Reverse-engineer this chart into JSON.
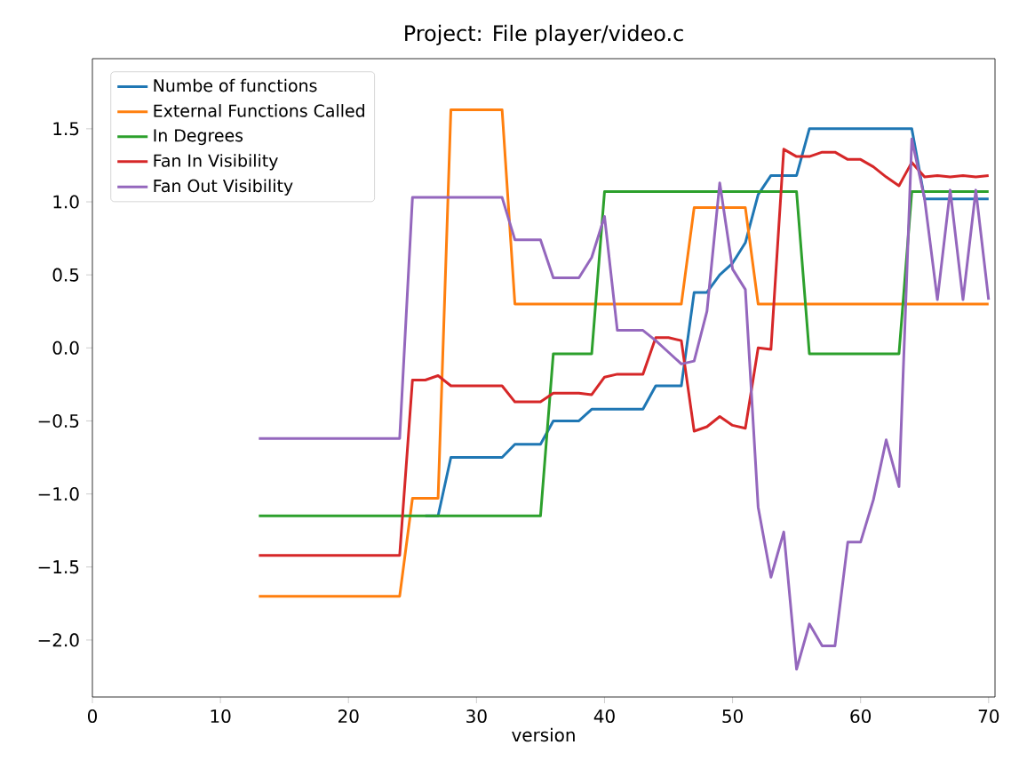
{
  "chart_data": {
    "type": "line",
    "title": "Project: File player/video.c",
    "xlabel": "version",
    "x": [
      13,
      14,
      15,
      16,
      17,
      18,
      19,
      20,
      21,
      22,
      23,
      24,
      25,
      26,
      27,
      28,
      29,
      30,
      31,
      32,
      33,
      34,
      35,
      36,
      37,
      38,
      39,
      40,
      41,
      42,
      43,
      44,
      45,
      46,
      47,
      48,
      49,
      50,
      51,
      52,
      53,
      54,
      55,
      56,
      57,
      58,
      59,
      60,
      61,
      62,
      63,
      64,
      65,
      66,
      67,
      68,
      69,
      70
    ],
    "series": [
      {
        "name": "Numbe of functions",
        "color": "#1f77b4",
        "values": [
          null,
          null,
          null,
          null,
          null,
          null,
          null,
          null,
          null,
          null,
          null,
          null,
          null,
          -1.15,
          -1.15,
          -0.75,
          -0.75,
          -0.75,
          -0.75,
          -0.75,
          -0.66,
          -0.66,
          -0.66,
          -0.5,
          -0.5,
          -0.5,
          -0.42,
          -0.42,
          -0.42,
          -0.42,
          -0.42,
          -0.26,
          -0.26,
          -0.26,
          0.38,
          0.38,
          0.5,
          0.58,
          0.72,
          1.05,
          1.18,
          1.18,
          1.18,
          1.5,
          1.5,
          1.5,
          1.5,
          1.5,
          1.5,
          1.5,
          1.5,
          1.5,
          1.02,
          1.02,
          1.02,
          1.02,
          1.02,
          1.02
        ]
      },
      {
        "name": "External Functions Called",
        "color": "#ff7f0e",
        "values": [
          -1.7,
          -1.7,
          -1.7,
          -1.7,
          -1.7,
          -1.7,
          -1.7,
          -1.7,
          -1.7,
          -1.7,
          -1.7,
          -1.7,
          -1.03,
          -1.03,
          -1.03,
          1.63,
          1.63,
          1.63,
          1.63,
          1.63,
          0.3,
          0.3,
          0.3,
          0.3,
          0.3,
          0.3,
          0.3,
          0.3,
          0.3,
          0.3,
          0.3,
          0.3,
          0.3,
          0.3,
          0.96,
          0.96,
          0.96,
          0.96,
          0.96,
          0.3,
          0.3,
          0.3,
          0.3,
          0.3,
          0.3,
          0.3,
          0.3,
          0.3,
          0.3,
          0.3,
          0.3,
          0.3,
          0.3,
          0.3,
          0.3,
          0.3,
          0.3,
          0.3
        ]
      },
      {
        "name": "In Degrees",
        "color": "#2ca02c",
        "values": [
          -1.15,
          -1.15,
          -1.15,
          -1.15,
          -1.15,
          -1.15,
          -1.15,
          -1.15,
          -1.15,
          -1.15,
          -1.15,
          -1.15,
          -1.15,
          -1.15,
          -1.15,
          -1.15,
          -1.15,
          -1.15,
          -1.15,
          -1.15,
          -1.15,
          -1.15,
          -1.15,
          -0.04,
          -0.04,
          -0.04,
          -0.04,
          1.07,
          1.07,
          1.07,
          1.07,
          1.07,
          1.07,
          1.07,
          1.07,
          1.07,
          1.07,
          1.07,
          1.07,
          1.07,
          1.07,
          1.07,
          1.07,
          -0.04,
          -0.04,
          -0.04,
          -0.04,
          -0.04,
          -0.04,
          -0.04,
          -0.04,
          1.07,
          1.07,
          1.07,
          1.07,
          1.07,
          1.07,
          1.07
        ]
      },
      {
        "name": "Fan In Visibility",
        "color": "#d62728",
        "values": [
          -1.42,
          -1.42,
          -1.42,
          -1.42,
          -1.42,
          -1.42,
          -1.42,
          -1.42,
          -1.42,
          -1.42,
          -1.42,
          -1.42,
          -0.22,
          -0.22,
          -0.19,
          -0.26,
          -0.26,
          -0.26,
          -0.26,
          -0.26,
          -0.37,
          -0.37,
          -0.37,
          -0.31,
          -0.31,
          -0.31,
          -0.32,
          -0.2,
          -0.18,
          -0.18,
          -0.18,
          0.07,
          0.07,
          0.05,
          -0.57,
          -0.54,
          -0.47,
          -0.53,
          -0.55,
          0.0,
          -0.01,
          1.36,
          1.31,
          1.31,
          1.34,
          1.34,
          1.29,
          1.29,
          1.24,
          1.17,
          1.11,
          1.27,
          1.17,
          1.18,
          1.17,
          1.18,
          1.17,
          1.18
        ]
      },
      {
        "name": "Fan Out Visibility",
        "color": "#9467bd",
        "values": [
          -0.62,
          -0.62,
          -0.62,
          -0.62,
          -0.62,
          -0.62,
          -0.62,
          -0.62,
          -0.62,
          -0.62,
          -0.62,
          -0.62,
          1.03,
          1.03,
          1.03,
          1.03,
          1.03,
          1.03,
          1.03,
          1.03,
          0.74,
          0.74,
          0.74,
          0.48,
          0.48,
          0.48,
          0.62,
          0.9,
          0.12,
          0.12,
          0.12,
          0.05,
          -0.03,
          -0.11,
          -0.09,
          0.25,
          1.13,
          0.54,
          0.4,
          -1.09,
          -1.57,
          -1.26,
          -2.2,
          -1.89,
          -2.04,
          -2.04,
          -1.33,
          -1.33,
          -1.04,
          -0.63,
          -0.95,
          1.43,
          1.02,
          0.33,
          1.08,
          0.33,
          1.08,
          0.33
        ]
      }
    ],
    "xlim": [
      0,
      70.5
    ],
    "ylim": [
      -2.39,
      1.98
    ],
    "xticks": [
      0,
      10,
      20,
      30,
      40,
      50,
      60,
      70
    ],
    "yticks": [
      {
        "value": -2.0,
        "label": "−2.0"
      },
      {
        "value": -1.5,
        "label": "−1.5"
      },
      {
        "value": -1.0,
        "label": "−1.0"
      },
      {
        "value": -0.5,
        "label": "−0.5"
      },
      {
        "value": 0.0,
        "label": "0.0"
      },
      {
        "value": 0.5,
        "label": "0.5"
      },
      {
        "value": 1.0,
        "label": "1.0"
      },
      {
        "value": 1.5,
        "label": "1.5"
      }
    ],
    "legend": "top left",
    "grid": false,
    "marker": "none",
    "line_style": "solid"
  }
}
